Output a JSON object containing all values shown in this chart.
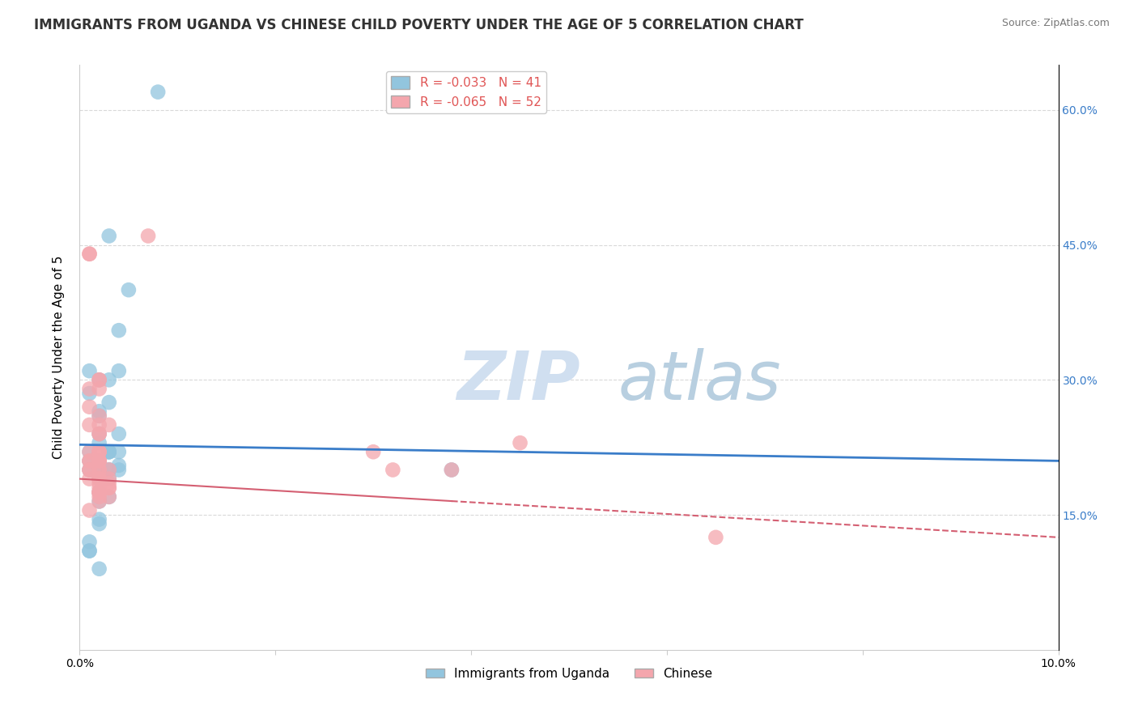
{
  "title": "IMMIGRANTS FROM UGANDA VS CHINESE CHILD POVERTY UNDER THE AGE OF 5 CORRELATION CHART",
  "source": "Source: ZipAtlas.com",
  "ylabel": "Child Poverty Under the Age of 5",
  "xlabel": "",
  "watermark_zip": "ZIP",
  "watermark_atlas": "atlas",
  "xlim": [
    0.0,
    0.1
  ],
  "ylim": [
    0.0,
    0.65
  ],
  "x_ticks": [
    0.0,
    0.02,
    0.04,
    0.06,
    0.08,
    0.1
  ],
  "x_tick_labels": [
    "0.0%",
    "",
    "",
    "",
    "",
    "10.0%"
  ],
  "y_ticks": [
    0.15,
    0.3,
    0.45,
    0.6
  ],
  "y_tick_labels": [
    "15.0%",
    "30.0%",
    "45.0%",
    "60.0%"
  ],
  "legend_blue_r": "R = -0.033",
  "legend_blue_n": "N = 41",
  "legend_pink_r": "R = -0.065",
  "legend_pink_n": "N = 52",
  "blue_color": "#92c5de",
  "pink_color": "#f4a6ad",
  "blue_line_color": "#3a7dc9",
  "pink_line_color": "#d45f72",
  "uganda_x": [
    0.001,
    0.008,
    0.003,
    0.005,
    0.004,
    0.001,
    0.002,
    0.001,
    0.003,
    0.002,
    0.002,
    0.003,
    0.002,
    0.004,
    0.004,
    0.003,
    0.002,
    0.001,
    0.002,
    0.003,
    0.002,
    0.002,
    0.003,
    0.002,
    0.004,
    0.003,
    0.003,
    0.004,
    0.004,
    0.001,
    0.002,
    0.003,
    0.002,
    0.003,
    0.002,
    0.001,
    0.001,
    0.002,
    0.038,
    0.002,
    0.001
  ],
  "uganda_y": [
    0.22,
    0.62,
    0.46,
    0.4,
    0.355,
    0.31,
    0.3,
    0.285,
    0.275,
    0.265,
    0.24,
    0.3,
    0.26,
    0.31,
    0.22,
    0.22,
    0.2,
    0.21,
    0.21,
    0.22,
    0.23,
    0.205,
    0.2,
    0.19,
    0.24,
    0.2,
    0.22,
    0.2,
    0.205,
    0.2,
    0.145,
    0.19,
    0.175,
    0.17,
    0.165,
    0.12,
    0.11,
    0.09,
    0.2,
    0.14,
    0.11
  ],
  "chinese_x": [
    0.001,
    0.002,
    0.007,
    0.001,
    0.002,
    0.001,
    0.002,
    0.001,
    0.001,
    0.002,
    0.002,
    0.001,
    0.002,
    0.003,
    0.002,
    0.002,
    0.001,
    0.002,
    0.001,
    0.002,
    0.002,
    0.002,
    0.001,
    0.001,
    0.002,
    0.002,
    0.002,
    0.002,
    0.001,
    0.002,
    0.003,
    0.002,
    0.002,
    0.03,
    0.032,
    0.002,
    0.003,
    0.003,
    0.002,
    0.003,
    0.002,
    0.003,
    0.002,
    0.045,
    0.038,
    0.003,
    0.002,
    0.002,
    0.002,
    0.002,
    0.001,
    0.065
  ],
  "chinese_y": [
    0.44,
    0.3,
    0.46,
    0.44,
    0.3,
    0.29,
    0.29,
    0.27,
    0.25,
    0.24,
    0.22,
    0.21,
    0.21,
    0.25,
    0.22,
    0.2,
    0.19,
    0.19,
    0.2,
    0.26,
    0.25,
    0.21,
    0.22,
    0.21,
    0.21,
    0.24,
    0.22,
    0.2,
    0.2,
    0.21,
    0.2,
    0.19,
    0.19,
    0.22,
    0.2,
    0.18,
    0.19,
    0.185,
    0.185,
    0.18,
    0.175,
    0.17,
    0.175,
    0.23,
    0.2,
    0.18,
    0.175,
    0.175,
    0.17,
    0.165,
    0.155,
    0.125
  ],
  "background_color": "#ffffff",
  "grid_color": "#d9d9d9",
  "title_fontsize": 12,
  "axis_label_fontsize": 11,
  "tick_fontsize": 10,
  "legend_fontsize": 11,
  "watermark_fontsize_zip": 60,
  "watermark_fontsize_atlas": 60,
  "watermark_color": "#dce9f5",
  "watermark_color2": "#c8d8e8",
  "bottom_legend_labels": [
    "Immigrants from Uganda",
    "Chinese"
  ]
}
